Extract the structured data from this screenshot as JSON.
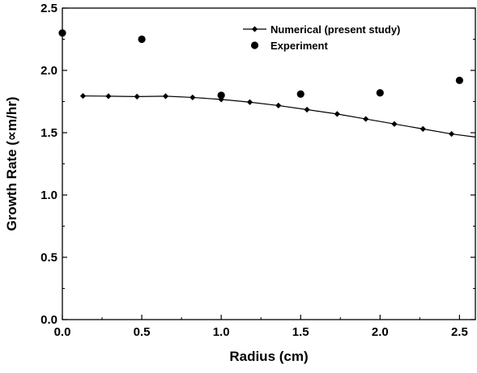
{
  "chart_data": {
    "type": "scatter",
    "title": "",
    "xlabel": "Radius (cm)",
    "ylabel": "Growth Rate (∝m/hr)",
    "xlim": [
      0.0,
      2.6
    ],
    "ylim": [
      0.0,
      2.5
    ],
    "x_ticks": [
      "0.0",
      "0.5",
      "1.0",
      "1.5",
      "2.0",
      "2.5"
    ],
    "y_ticks": [
      "0.0",
      "0.5",
      "1.0",
      "1.5",
      "2.0",
      "2.5"
    ],
    "grid": false,
    "legend_position": "top-right",
    "series": [
      {
        "name": "Numerical (present study)",
        "style": "line-with-diamond-markers",
        "color": "#000000",
        "line_x": [
          0.13,
          0.29,
          0.47,
          0.65,
          0.82,
          1.0,
          1.18,
          1.36,
          1.54,
          1.73,
          1.91,
          2.09,
          2.27,
          2.45,
          2.6
        ],
        "line_y": [
          1.795,
          1.793,
          1.79,
          1.793,
          1.783,
          1.767,
          1.745,
          1.718,
          1.685,
          1.65,
          1.61,
          1.57,
          1.53,
          1.49,
          1.465
        ],
        "marker_x": [
          0.13,
          0.29,
          0.47,
          0.65,
          0.82,
          1.0,
          1.18,
          1.36,
          1.54,
          1.73,
          1.91,
          2.09,
          2.27,
          2.45
        ],
        "marker_y": [
          1.795,
          1.793,
          1.79,
          1.793,
          1.783,
          1.767,
          1.745,
          1.718,
          1.685,
          1.65,
          1.61,
          1.57,
          1.53,
          1.49
        ]
      },
      {
        "name": "Experiment",
        "style": "filled-circle-markers",
        "color": "#000000",
        "x": [
          0.0,
          0.5,
          1.0,
          1.5,
          2.0,
          2.5
        ],
        "y": [
          2.3,
          2.25,
          1.8,
          1.81,
          1.82,
          1.92
        ]
      }
    ]
  }
}
